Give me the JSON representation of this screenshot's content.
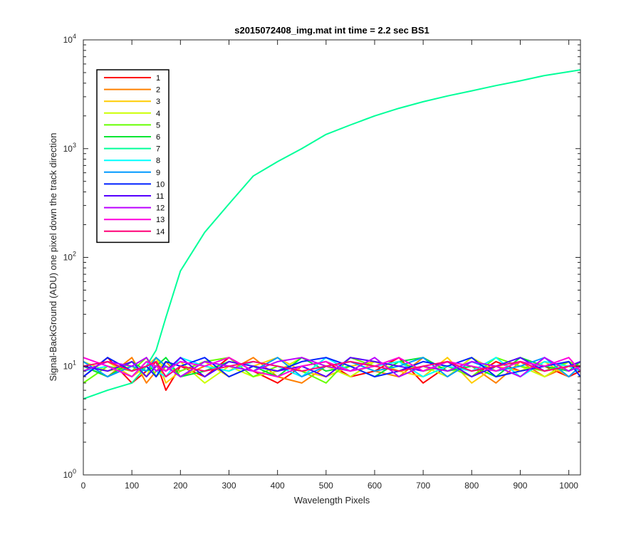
{
  "chart_data": {
    "type": "line",
    "title": "s2015072408_img.mat int time = 2.2 sec   BS1",
    "xlabel": "Wavelength Pixels",
    "ylabel": "Signal-BackGround (ADU) one pixel down the track direction",
    "xlim": [
      0,
      1024
    ],
    "ylim": [
      1,
      10000
    ],
    "yscale": "log",
    "grid": false,
    "legend_position": "top-left",
    "x_ticks": [
      "0",
      "100",
      "200",
      "300",
      "400",
      "500",
      "600",
      "700",
      "800",
      "900",
      "1000"
    ],
    "y_ticks": [
      {
        "base": "10",
        "exp": "0"
      },
      {
        "base": "10",
        "exp": "1"
      },
      {
        "base": "10",
        "exp": "2"
      },
      {
        "base": "10",
        "exp": "3"
      },
      {
        "base": "10",
        "exp": "4"
      }
    ],
    "x": [
      0,
      50,
      100,
      130,
      150,
      170,
      200,
      250,
      300,
      350,
      400,
      450,
      500,
      550,
      600,
      650,
      700,
      750,
      800,
      850,
      900,
      950,
      1000,
      1024
    ],
    "series": [
      {
        "name": "1",
        "color": "#ff0000",
        "values": [
          8,
          12,
          7,
          9,
          11,
          6,
          10,
          8,
          12,
          9,
          7,
          10,
          11,
          8,
          9,
          12,
          7,
          10,
          8,
          11,
          9,
          10,
          8,
          9
        ]
      },
      {
        "name": "2",
        "color": "#ff8000",
        "values": [
          10,
          8,
          12,
          7,
          9,
          11,
          8,
          10,
          9,
          12,
          8,
          7,
          10,
          11,
          9,
          8,
          12,
          9,
          10,
          7,
          11,
          8,
          10,
          9
        ]
      },
      {
        "name": "3",
        "color": "#ffcc00",
        "values": [
          9,
          11,
          8,
          10,
          12,
          7,
          9,
          11,
          8,
          10,
          12,
          9,
          8,
          10,
          11,
          9,
          8,
          12,
          7,
          10,
          9,
          11,
          8,
          10
        ]
      },
      {
        "name": "4",
        "color": "#ccff00",
        "values": [
          11,
          9,
          10,
          8,
          12,
          9,
          11,
          7,
          10,
          8,
          9,
          12,
          10,
          8,
          11,
          9,
          10,
          8,
          12,
          9,
          10,
          8,
          11,
          9
        ]
      },
      {
        "name": "5",
        "color": "#66ff00",
        "values": [
          7,
          10,
          9,
          12,
          8,
          10,
          9,
          11,
          12,
          8,
          10,
          9,
          7,
          12,
          10,
          11,
          9,
          10,
          8,
          12,
          10,
          9,
          11,
          10
        ]
      },
      {
        "name": "6",
        "color": "#00e633",
        "values": [
          10,
          8,
          11,
          9,
          10,
          12,
          8,
          9,
          11,
          10,
          8,
          12,
          9,
          10,
          8,
          11,
          12,
          9,
          10,
          8,
          12,
          10,
          9,
          11
        ]
      },
      {
        "name": "7",
        "color": "#00ff99",
        "values": [
          5,
          6,
          7,
          10,
          14,
          28,
          75,
          170,
          310,
          560,
          760,
          1000,
          1350,
          1650,
          2000,
          2350,
          2700,
          3050,
          3400,
          3800,
          4200,
          4700,
          5100,
          5300
        ]
      },
      {
        "name": "8",
        "color": "#00ffff",
        "values": [
          9,
          10,
          8,
          11,
          9,
          8,
          12,
          10,
          9,
          11,
          10,
          8,
          12,
          9,
          10,
          11,
          8,
          10,
          9,
          12,
          8,
          11,
          10,
          9
        ]
      },
      {
        "name": "9",
        "color": "#0099ff",
        "values": [
          11,
          8,
          10,
          9,
          12,
          10,
          8,
          11,
          10,
          9,
          12,
          8,
          10,
          11,
          9,
          10,
          12,
          8,
          11,
          9,
          10,
          12,
          8,
          10
        ]
      },
      {
        "name": "10",
        "color": "#0022ff",
        "values": [
          8,
          12,
          9,
          10,
          8,
          11,
          10,
          12,
          8,
          10,
          9,
          11,
          12,
          10,
          8,
          9,
          11,
          10,
          12,
          8,
          9,
          10,
          11,
          8
        ]
      },
      {
        "name": "11",
        "color": "#5500ff",
        "values": [
          10,
          9,
          11,
          8,
          10,
          9,
          12,
          8,
          11,
          10,
          9,
          10,
          8,
          12,
          11,
          10,
          9,
          11,
          8,
          10,
          12,
          9,
          10,
          11
        ]
      },
      {
        "name": "12",
        "color": "#bb00ff",
        "values": [
          9,
          11,
          10,
          12,
          9,
          10,
          8,
          11,
          10,
          9,
          11,
          12,
          10,
          9,
          12,
          8,
          10,
          9,
          11,
          10,
          8,
          12,
          9,
          10
        ]
      },
      {
        "name": "13",
        "color": "#ff00dd",
        "values": [
          12,
          10,
          8,
          11,
          10,
          9,
          11,
          10,
          12,
          9,
          8,
          10,
          11,
          9,
          10,
          12,
          9,
          11,
          10,
          9,
          11,
          10,
          12,
          9
        ]
      },
      {
        "name": "14",
        "color": "#ff0077",
        "values": [
          10,
          11,
          9,
          10,
          11,
          8,
          10,
          9,
          10,
          11,
          10,
          9,
          10,
          11,
          10,
          9,
          10,
          11,
          9,
          10,
          11,
          9,
          10,
          10
        ]
      }
    ]
  }
}
